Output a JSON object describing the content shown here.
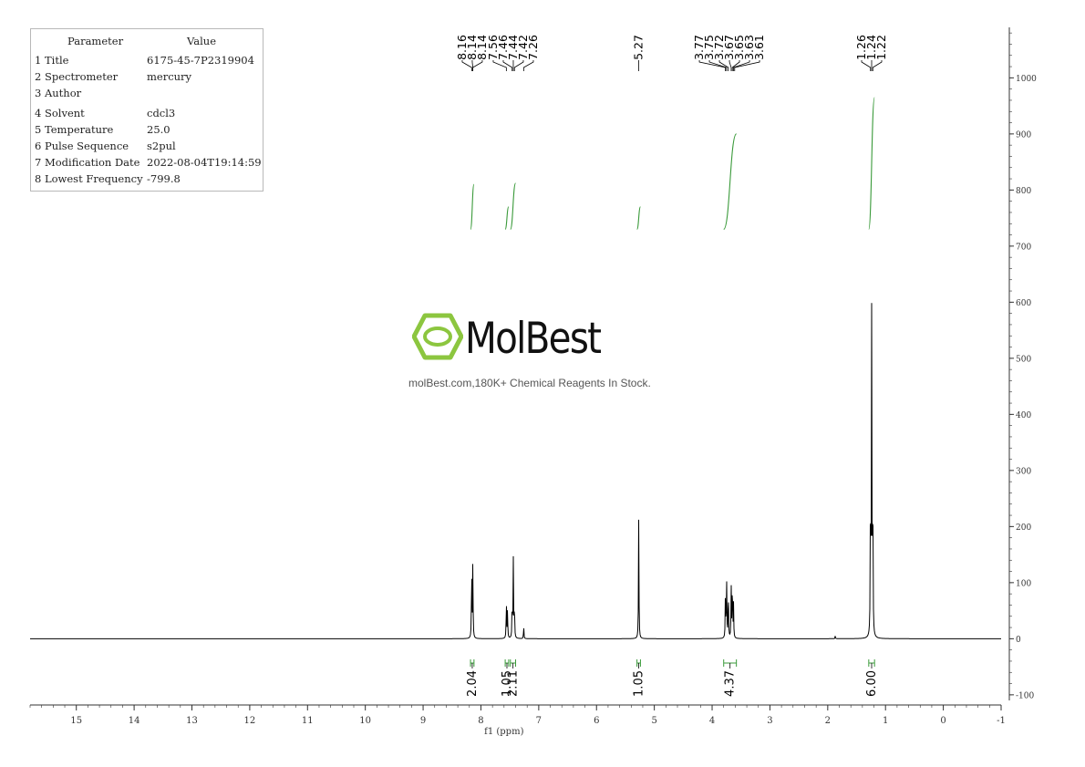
{
  "parameter_table": {
    "header_parameter": "Parameter",
    "header_value": "Value",
    "rows": [
      {
        "label": "1 Title",
        "value": "6175-45-7P2319904"
      },
      {
        "label": "2 Spectrometer",
        "value": "mercury"
      },
      {
        "label": "3 Author",
        "value": ""
      },
      {
        "label": "4 Solvent",
        "value": "cdcl3"
      },
      {
        "label": "5 Temperature",
        "value": "25.0"
      },
      {
        "label": "6 Pulse Sequence",
        "value": "s2pul"
      },
      {
        "label": "7 Modification Date",
        "value": "2022-08-04T19:14:59"
      },
      {
        "label": "8 Lowest Frequency",
        "value": "-799.8"
      }
    ]
  },
  "watermark": {
    "brand": "MolBest",
    "tagline": "molBest.com,180K+ Chemical Reagents In Stock."
  },
  "colors": {
    "spectrum": "#000000",
    "integral": "#3a9a3a",
    "logo_green": "#8cc63f",
    "axis": "#333333",
    "table_border": "#b8b8b8"
  },
  "chart_data": {
    "type": "line",
    "title": "",
    "xlabel": "f1 (ppm)",
    "ylabel": "",
    "xlim": [
      15.8,
      -1
    ],
    "x_reversed": true,
    "ylim": [
      -110,
      1090
    ],
    "x_ticks": [
      15,
      14,
      13,
      12,
      11,
      10,
      9,
      8,
      7,
      6,
      5,
      4,
      3,
      2,
      1,
      0,
      -1
    ],
    "y_ticks": [
      1000,
      900,
      800,
      700,
      600,
      500,
      400,
      300,
      200,
      100,
      0,
      -100
    ],
    "grid": false,
    "series": [
      {
        "peaks": [
          {
            "ppm": 8.16,
            "height": 136
          },
          {
            "ppm": 8.14,
            "height": 138
          },
          {
            "ppm": 7.56,
            "height": 68
          },
          {
            "ppm": 7.54,
            "height": 55
          },
          {
            "ppm": 7.46,
            "height": 62
          },
          {
            "ppm": 7.44,
            "height": 143
          },
          {
            "ppm": 7.42,
            "height": 62
          },
          {
            "ppm": 7.26,
            "height": 22
          },
          {
            "ppm": 5.27,
            "height": 214
          },
          {
            "ppm": 3.77,
            "height": 78
          },
          {
            "ppm": 3.75,
            "height": 112
          },
          {
            "ppm": 3.72,
            "height": 95
          },
          {
            "ppm": 3.67,
            "height": 90
          },
          {
            "ppm": 3.65,
            "height": 110
          },
          {
            "ppm": 3.63,
            "height": 60
          },
          {
            "ppm": 1.87,
            "height": 5
          },
          {
            "ppm": 1.26,
            "height": 298
          },
          {
            "ppm": 1.24,
            "height": 570
          },
          {
            "ppm": 1.22,
            "height": 296
          }
        ]
      }
    ],
    "peak_labels": [
      {
        "group": [
          8.16,
          8.14,
          8.14
        ],
        "labels": [
          "8.16",
          "8.14",
          "8.14"
        ],
        "anchor": 8.15
      },
      {
        "group": [
          7.56,
          7.46,
          7.44,
          7.42,
          7.26
        ],
        "labels": [
          "7.56",
          "7.46",
          "7.44",
          "7.42",
          "7.26"
        ],
        "anchor": 7.44
      },
      {
        "group": [
          5.27
        ],
        "labels": [
          "5.27"
        ],
        "anchor": 5.27
      },
      {
        "group": [
          3.77,
          3.75,
          3.72,
          3.67,
          3.65,
          3.63,
          3.61
        ],
        "labels": [
          "3.77",
          "3.75",
          "3.72",
          "3.67",
          "3.65",
          "3.63",
          "3.61"
        ],
        "anchor": 3.7
      },
      {
        "group": [
          1.26,
          1.24,
          1.22
        ],
        "labels": [
          "1.26",
          "1.24",
          "1.22"
        ],
        "anchor": 1.24
      }
    ],
    "integrations": [
      {
        "from": 8.18,
        "to": 8.12,
        "value": "2.04",
        "curve_bottom": 730,
        "curve_top": 810
      },
      {
        "from": 7.58,
        "to": 7.52,
        "value": "1.05",
        "curve_bottom": 730,
        "curve_top": 770
      },
      {
        "from": 7.49,
        "to": 7.4,
        "value": "2.11",
        "curve_bottom": 730,
        "curve_top": 812
      },
      {
        "from": 5.3,
        "to": 5.24,
        "value": "1.05",
        "curve_bottom": 730,
        "curve_top": 770
      },
      {
        "from": 3.8,
        "to": 3.58,
        "value": "4.37",
        "curve_bottom": 730,
        "curve_top": 900
      },
      {
        "from": 1.29,
        "to": 1.19,
        "value": "6.00",
        "curve_bottom": 730,
        "curve_top": 965
      }
    ]
  }
}
